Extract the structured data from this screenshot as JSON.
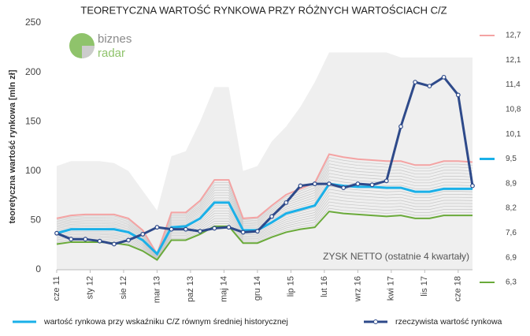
{
  "chart_data": {
    "type": "line",
    "title": "TEORETYCZNA WARTOŚĆ RYNKOWA PRZY RÓŻNYCH WARTOŚCIACH C/Z",
    "ylabel": "teoretyczna wartość rynkowa [mln zł]",
    "logo": [
      "biznes",
      "radar"
    ],
    "area_label": "ZYSK NETTO (ostatnie 4 kwartały)",
    "x": [
      0,
      3,
      6,
      9,
      12,
      15,
      18,
      21,
      24,
      27,
      30,
      33,
      36,
      39,
      42,
      45,
      48,
      51,
      54,
      57,
      60,
      63,
      66,
      69,
      72,
      75,
      78,
      81,
      84,
      87
    ],
    "xlim": [
      0,
      87
    ],
    "xticks": [
      {
        "value": 0,
        "label": "cze 11"
      },
      {
        "value": 7,
        "label": "sty 12"
      },
      {
        "value": 14,
        "label": "sie 12"
      },
      {
        "value": 21,
        "label": "mar 13"
      },
      {
        "value": 28,
        "label": "paź 13"
      },
      {
        "value": 35,
        "label": "maj 14"
      },
      {
        "value": 42,
        "label": "gru 14"
      },
      {
        "value": 49,
        "label": "lip 15"
      },
      {
        "value": 56,
        "label": "lut 16"
      },
      {
        "value": 63,
        "label": "wrz 16"
      },
      {
        "value": 70,
        "label": "kwi 17"
      },
      {
        "value": 77,
        "label": "lis 17"
      },
      {
        "value": 84,
        "label": "cze 18"
      }
    ],
    "ylim": [
      0,
      250
    ],
    "yticks": [
      0,
      50,
      100,
      150,
      200,
      250
    ],
    "area": {
      "color": "#efefef",
      "values": [
        105,
        110,
        110,
        110,
        108,
        100,
        80,
        60,
        115,
        120,
        150,
        185,
        185,
        100,
        105,
        130,
        145,
        165,
        190,
        220,
        220,
        220,
        220,
        220,
        215,
        215,
        215,
        215,
        215,
        215
      ]
    },
    "pe_levels": [
      {
        "value": 12.7,
        "label": "12,7",
        "color": "#f4a3a3"
      },
      {
        "value": 12.1,
        "label": "12,1"
      },
      {
        "value": 11.4,
        "label": "11,4"
      },
      {
        "value": 10.8,
        "label": "10,8"
      },
      {
        "value": 10.1,
        "label": "10,1"
      },
      {
        "value": 9.5,
        "label": "9,5",
        "color": "#1ab0e8"
      },
      {
        "value": 8.9,
        "label": "8,9"
      },
      {
        "value": 8.2,
        "label": "8,2"
      },
      {
        "value": 7.6,
        "label": "7,6"
      },
      {
        "value": 6.9,
        "label": "6,9"
      },
      {
        "value": 6.3,
        "label": "6,3",
        "color": "#6aaa3a"
      }
    ],
    "series": [
      {
        "color": "#f4a3a3",
        "values": [
          52,
          55,
          56,
          56,
          56,
          52,
          40,
          16,
          58,
          58,
          70,
          91,
          91,
          52,
          53,
          65,
          76,
          82,
          88,
          117,
          114,
          112,
          111,
          110,
          110,
          106,
          106,
          110,
          110,
          109
        ]
      },
      {
        "color": "#6aaa3a",
        "values": [
          26,
          28,
          28,
          28,
          27,
          25,
          19,
          10,
          30,
          30,
          36,
          44,
          44,
          27,
          27,
          33,
          38,
          41,
          43,
          59,
          57,
          56,
          55,
          54,
          55,
          52,
          52,
          55,
          55,
          55
        ]
      },
      {
        "name": "wartość rynkowa przy wskaźniku C/Z równym średniej historycznej",
        "color": "#1ab0e8",
        "values": [
          37,
          41,
          41,
          41,
          41,
          38,
          30,
          16,
          43,
          44,
          52,
          68,
          68,
          40,
          40,
          48,
          57,
          61,
          65,
          87,
          85,
          84,
          84,
          83,
          83,
          79,
          79,
          82,
          82,
          82
        ]
      },
      {
        "name": "rzeczywista wartość rynkowa",
        "color": "#2e4a8a",
        "markers": true,
        "values": [
          37,
          31,
          31,
          29,
          26,
          30,
          36,
          43,
          41,
          41,
          39,
          42,
          43,
          38,
          39,
          54,
          68,
          85,
          87,
          87,
          83,
          87,
          86,
          90,
          145,
          190,
          186,
          195,
          177,
          85
        ]
      }
    ]
  }
}
